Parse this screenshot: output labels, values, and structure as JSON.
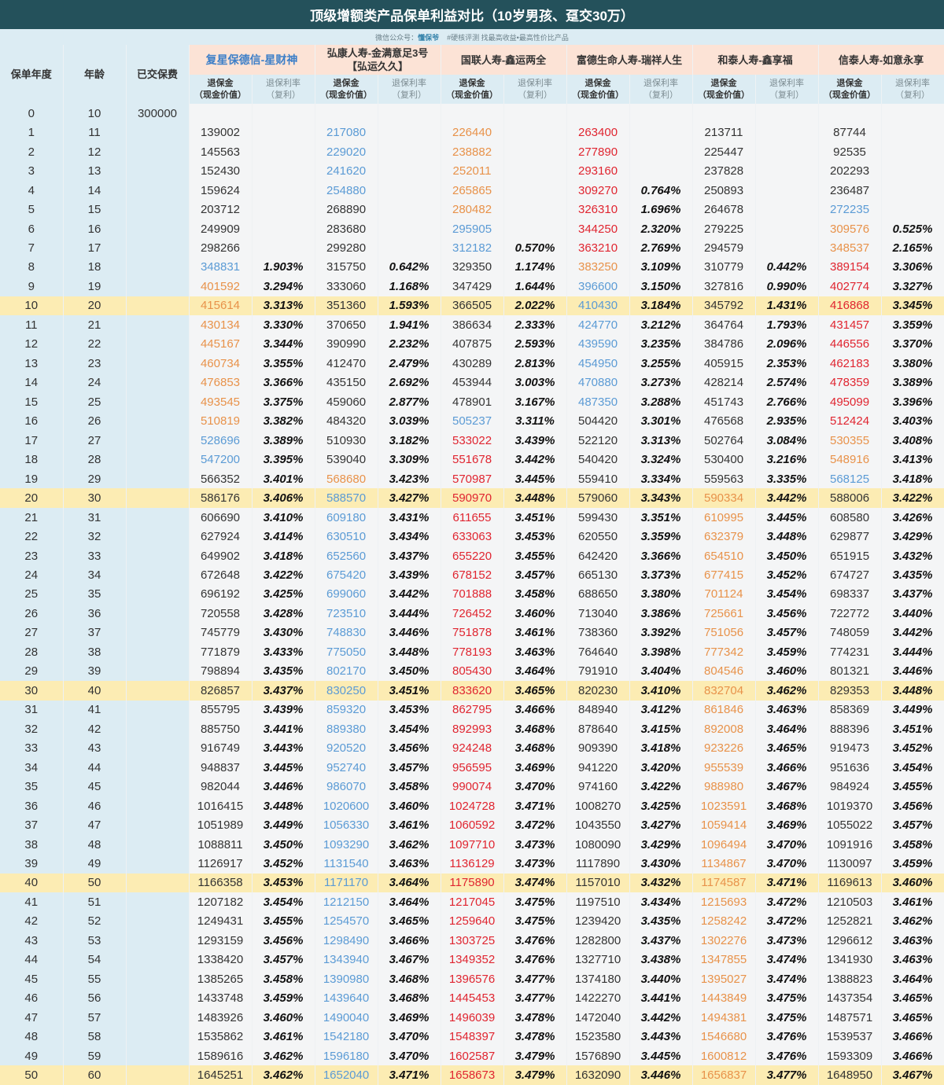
{
  "title": "顶级增额类产品保单利益对比（10岁男孩、趸交30万）",
  "subtitle": {
    "prefix": "微信公众号：",
    "account": "懂保爷",
    "tags": "#硬核评测  找最高收益•最高性价比产品"
  },
  "headers": {
    "year": "保单年度",
    "age": "年龄",
    "paid": "已交保费",
    "value_line1": "退保金",
    "value_line2": "（现金价值）",
    "rate_line1": "退保利率",
    "rate_line2": "（复利）"
  },
  "color_key": {
    "b": "#5b9bd5",
    "o": "#e8924a",
    "r": "#e02530",
    "-": ""
  },
  "highlight_years": [
    10,
    20,
    30,
    40,
    50
  ],
  "paid_row0": "300000",
  "products": [
    {
      "name": "复星保德信-星财神",
      "name2": "",
      "values": [
        "",
        "139002",
        "145563",
        "152430",
        "159624",
        "203712",
        "249909",
        "298266",
        "348831",
        "401592",
        "415614",
        "430134",
        "445167",
        "460734",
        "476853",
        "493545",
        "510819",
        "528696",
        "547200",
        "566352",
        "586176",
        "606690",
        "627924",
        "649902",
        "672648",
        "696192",
        "720558",
        "745779",
        "771879",
        "798894",
        "826857",
        "855795",
        "885750",
        "916749",
        "948837",
        "982044",
        "1016415",
        "1051989",
        "1088811",
        "1126917",
        "1166358",
        "1207182",
        "1249431",
        "1293159",
        "1338420",
        "1385265",
        "1433748",
        "1483926",
        "1535862",
        "1589616",
        "1645251"
      ],
      "rates": [
        "",
        "",
        "",
        "",
        "",
        "",
        "",
        "",
        "1.903%",
        "3.294%",
        "3.313%",
        "3.330%",
        "3.344%",
        "3.355%",
        "3.366%",
        "3.375%",
        "3.382%",
        "3.389%",
        "3.395%",
        "3.401%",
        "3.406%",
        "3.410%",
        "3.414%",
        "3.418%",
        "3.422%",
        "3.425%",
        "3.428%",
        "3.430%",
        "3.433%",
        "3.435%",
        "3.437%",
        "3.439%",
        "3.441%",
        "3.443%",
        "3.445%",
        "3.446%",
        "3.448%",
        "3.449%",
        "3.450%",
        "3.452%",
        "3.453%",
        "3.454%",
        "3.455%",
        "3.456%",
        "3.457%",
        "3.458%",
        "3.459%",
        "3.460%",
        "3.461%",
        "3.462%",
        "3.462%"
      ],
      "colors": "--------boooooooobb--------------------------------"
    },
    {
      "name": "弘康人寿-金满意足3号",
      "name2": "【弘运久久】",
      "values": [
        "",
        "217080",
        "229020",
        "241620",
        "254880",
        "268890",
        "283680",
        "299280",
        "315750",
        "333060",
        "351360",
        "370650",
        "390990",
        "412470",
        "435150",
        "459060",
        "484320",
        "510930",
        "539040",
        "568680",
        "588570",
        "609180",
        "630510",
        "652560",
        "675420",
        "699060",
        "723510",
        "748830",
        "775050",
        "802170",
        "830250",
        "859320",
        "889380",
        "920520",
        "952740",
        "986070",
        "1020600",
        "1056330",
        "1093290",
        "1131540",
        "1171170",
        "1212150",
        "1254570",
        "1298490",
        "1343940",
        "1390980",
        "1439640",
        "1490040",
        "1542180",
        "1596180",
        "1652040"
      ],
      "rates": [
        "",
        "",
        "",
        "",
        "",
        "",
        "",
        "",
        "0.642%",
        "1.168%",
        "1.593%",
        "1.941%",
        "2.232%",
        "2.479%",
        "2.692%",
        "2.877%",
        "3.039%",
        "3.182%",
        "3.309%",
        "3.423%",
        "3.427%",
        "3.431%",
        "3.434%",
        "3.437%",
        "3.439%",
        "3.442%",
        "3.444%",
        "3.446%",
        "3.448%",
        "3.450%",
        "3.451%",
        "3.453%",
        "3.454%",
        "3.456%",
        "3.457%",
        "3.458%",
        "3.460%",
        "3.461%",
        "3.462%",
        "3.463%",
        "3.464%",
        "3.464%",
        "3.465%",
        "3.466%",
        "3.467%",
        "3.468%",
        "3.468%",
        "3.469%",
        "3.470%",
        "3.470%",
        "3.471%"
      ],
      "colors": "-bbbb--------------obbbbbbbbbbbbbbbbbbbbbbbbbbbbbbb"
    },
    {
      "name": "国联人寿-鑫运两全",
      "name2": "",
      "values": [
        "",
        "226440",
        "238882",
        "252011",
        "265865",
        "280482",
        "295905",
        "312182",
        "329350",
        "347429",
        "366505",
        "386634",
        "407875",
        "430289",
        "453944",
        "478901",
        "505237",
        "533022",
        "551678",
        "570987",
        "590970",
        "611655",
        "633063",
        "655220",
        "678152",
        "701888",
        "726452",
        "751878",
        "778193",
        "805430",
        "833620",
        "862795",
        "892993",
        "924248",
        "956595",
        "990074",
        "1024728",
        "1060592",
        "1097710",
        "1136129",
        "1175890",
        "1217045",
        "1259640",
        "1303725",
        "1349352",
        "1396576",
        "1445453",
        "1496039",
        "1548397",
        "1602587",
        "1658673"
      ],
      "rates": [
        "",
        "",
        "",
        "",
        "",
        "",
        "",
        "0.570%",
        "1.174%",
        "1.644%",
        "2.022%",
        "2.333%",
        "2.593%",
        "2.813%",
        "3.003%",
        "3.167%",
        "3.311%",
        "3.439%",
        "3.442%",
        "3.445%",
        "3.448%",
        "3.451%",
        "3.453%",
        "3.455%",
        "3.457%",
        "3.458%",
        "3.460%",
        "3.461%",
        "3.463%",
        "3.464%",
        "3.465%",
        "3.466%",
        "3.468%",
        "3.468%",
        "3.469%",
        "3.470%",
        "3.471%",
        "3.472%",
        "3.473%",
        "3.473%",
        "3.474%",
        "3.475%",
        "3.475%",
        "3.476%",
        "3.476%",
        "3.477%",
        "3.477%",
        "3.478%",
        "3.478%",
        "3.479%",
        "3.479%"
      ],
      "colors": "-ooooobb--------brrrrrrrrrrrrrrrrrrrrrrrrrrrrrrrrrr"
    },
    {
      "name": "富德生命人寿-瑞祥人生",
      "name2": "",
      "values": [
        "",
        "263400",
        "277890",
        "293160",
        "309270",
        "326310",
        "344250",
        "363210",
        "383250",
        "396600",
        "410430",
        "424770",
        "439590",
        "454950",
        "470880",
        "487350",
        "504420",
        "522120",
        "540420",
        "559410",
        "579060",
        "599430",
        "620550",
        "642420",
        "665130",
        "688650",
        "713040",
        "738360",
        "764640",
        "791910",
        "820230",
        "848940",
        "878640",
        "909390",
        "941220",
        "974160",
        "1008270",
        "1043550",
        "1080090",
        "1117890",
        "1157010",
        "1197510",
        "1239420",
        "1282800",
        "1327710",
        "1374180",
        "1422270",
        "1472040",
        "1523580",
        "1576890",
        "1632090"
      ],
      "rates": [
        "",
        "",
        "",
        "",
        "0.764%",
        "1.696%",
        "2.320%",
        "2.769%",
        "3.109%",
        "3.150%",
        "3.184%",
        "3.212%",
        "3.235%",
        "3.255%",
        "3.273%",
        "3.288%",
        "3.301%",
        "3.313%",
        "3.324%",
        "3.334%",
        "3.343%",
        "3.351%",
        "3.359%",
        "3.366%",
        "3.373%",
        "3.380%",
        "3.386%",
        "3.392%",
        "3.398%",
        "3.404%",
        "3.410%",
        "3.412%",
        "3.415%",
        "3.418%",
        "3.420%",
        "3.422%",
        "3.425%",
        "3.427%",
        "3.429%",
        "3.430%",
        "3.432%",
        "3.434%",
        "3.435%",
        "3.437%",
        "3.438%",
        "3.440%",
        "3.441%",
        "3.442%",
        "3.443%",
        "3.445%",
        "3.446%"
      ],
      "colors": "-rrrrrrrobbbbbbb-----------------------------------"
    },
    {
      "name": "和泰人寿-鑫享福",
      "name2": "",
      "values": [
        "",
        "213711",
        "225447",
        "237828",
        "250893",
        "264678",
        "279225",
        "294579",
        "310779",
        "327816",
        "345792",
        "364764",
        "384786",
        "405915",
        "428214",
        "451743",
        "476568",
        "502764",
        "530400",
        "559563",
        "590334",
        "610995",
        "632379",
        "654510",
        "677415",
        "701124",
        "725661",
        "751056",
        "777342",
        "804546",
        "832704",
        "861846",
        "892008",
        "923226",
        "955539",
        "988980",
        "1023591",
        "1059414",
        "1096494",
        "1134867",
        "1174587",
        "1215693",
        "1258242",
        "1302276",
        "1347855",
        "1395027",
        "1443849",
        "1494381",
        "1546680",
        "1600812",
        "1656837"
      ],
      "rates": [
        "",
        "",
        "",
        "",
        "",
        "",
        "",
        "",
        "0.442%",
        "0.990%",
        "1.431%",
        "1.793%",
        "2.096%",
        "2.353%",
        "2.574%",
        "2.766%",
        "2.935%",
        "3.084%",
        "3.216%",
        "3.335%",
        "3.442%",
        "3.445%",
        "3.448%",
        "3.450%",
        "3.452%",
        "3.454%",
        "3.456%",
        "3.457%",
        "3.459%",
        "3.460%",
        "3.462%",
        "3.463%",
        "3.464%",
        "3.465%",
        "3.466%",
        "3.467%",
        "3.468%",
        "3.469%",
        "3.470%",
        "3.470%",
        "3.471%",
        "3.472%",
        "3.472%",
        "3.473%",
        "3.474%",
        "3.474%",
        "3.475%",
        "3.475%",
        "3.476%",
        "3.476%",
        "3.477%"
      ],
      "colors": "--------------------ooooooooooooooooooooooooooooooo"
    },
    {
      "name": "信泰人寿-如意永享",
      "name2": "",
      "values": [
        "",
        "87744",
        "92535",
        "202293",
        "236487",
        "272235",
        "309576",
        "348537",
        "389154",
        "402774",
        "416868",
        "431457",
        "446556",
        "462183",
        "478359",
        "495099",
        "512424",
        "530355",
        "548916",
        "568125",
        "588006",
        "608580",
        "629877",
        "651915",
        "674727",
        "698337",
        "722772",
        "748059",
        "774231",
        "801321",
        "829353",
        "858369",
        "888396",
        "919473",
        "951636",
        "984924",
        "1019370",
        "1055022",
        "1091916",
        "1130097",
        "1169613",
        "1210503",
        "1252821",
        "1296612",
        "1341930",
        "1388823",
        "1437354",
        "1487571",
        "1539537",
        "1593309",
        "1648950"
      ],
      "rates": [
        "",
        "",
        "",
        "",
        "",
        "",
        "0.525%",
        "2.165%",
        "3.306%",
        "3.327%",
        "3.345%",
        "3.359%",
        "3.370%",
        "3.380%",
        "3.389%",
        "3.396%",
        "3.403%",
        "3.408%",
        "3.413%",
        "3.418%",
        "3.422%",
        "3.426%",
        "3.429%",
        "3.432%",
        "3.435%",
        "3.437%",
        "3.440%",
        "3.442%",
        "3.444%",
        "3.446%",
        "3.448%",
        "3.449%",
        "3.451%",
        "3.452%",
        "3.454%",
        "3.455%",
        "3.456%",
        "3.457%",
        "3.458%",
        "3.459%",
        "3.460%",
        "3.461%",
        "3.462%",
        "3.463%",
        "3.463%",
        "3.464%",
        "3.465%",
        "3.465%",
        "3.466%",
        "3.466%",
        "3.467%"
      ],
      "colors": "-----boorrrrrrrrroob-------------------------------"
    }
  ]
}
